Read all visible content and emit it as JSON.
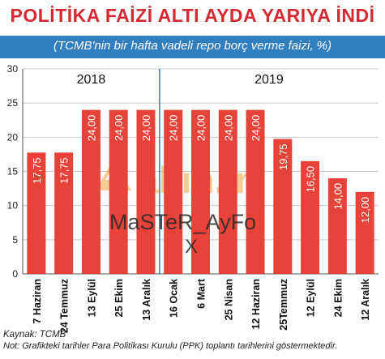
{
  "header": {
    "title": "POLİTİKA FAİZİ ALTI AYDA YARIYA İNDİ",
    "subtitle": "(TCMB'nin bir hafta vadeli repo borç verme faizi, %)"
  },
  "footer": {
    "source": "Kaynak: TCMB",
    "note": "Not: Grafikteki tarihler Para Politikası Kurulu (PPK) toplantı tarihlerini göstermektedir."
  },
  "watermark": {
    "brand": "altın.in",
    "text": "MaSTeR_AyFo",
    "mark": "X"
  },
  "colors": {
    "bar": "#e8433b",
    "title": "#d42a33",
    "band": "#2f7fc1",
    "grid": "#c9c9c9",
    "divider": "#2f7fc1"
  },
  "chart_data": {
    "type": "bar",
    "title": "",
    "xlabel": "",
    "ylabel": "",
    "ylim": [
      0,
      30
    ],
    "yticks": [
      0,
      5,
      10,
      15,
      20,
      25,
      30
    ],
    "grid": true,
    "categories": [
      "7 Haziran",
      "24 Temmuz",
      "13 Eylül",
      "25 Ekim",
      "13 Aralık",
      "16 Ocak",
      "6 Mart",
      "25 Nisan",
      "12 Haziran",
      "25Temmuz",
      "12 Eylül",
      "24 Ekim",
      "12 Aralık"
    ],
    "values": [
      17.75,
      17.75,
      24.0,
      24.0,
      24.0,
      24.0,
      24.0,
      24.0,
      24.0,
      19.75,
      16.5,
      14.0,
      12.0
    ],
    "value_labels": [
      "17,75",
      "17,75",
      "24,00",
      "24,00",
      "24,00",
      "24,00",
      "24,00",
      "24,00",
      "24,00",
      "19,75",
      "16,50",
      "14,00",
      "12,00"
    ],
    "years": [
      {
        "label": "2018",
        "first": 0,
        "last": 4
      },
      {
        "label": "2019",
        "first": 5,
        "last": 12
      }
    ]
  }
}
